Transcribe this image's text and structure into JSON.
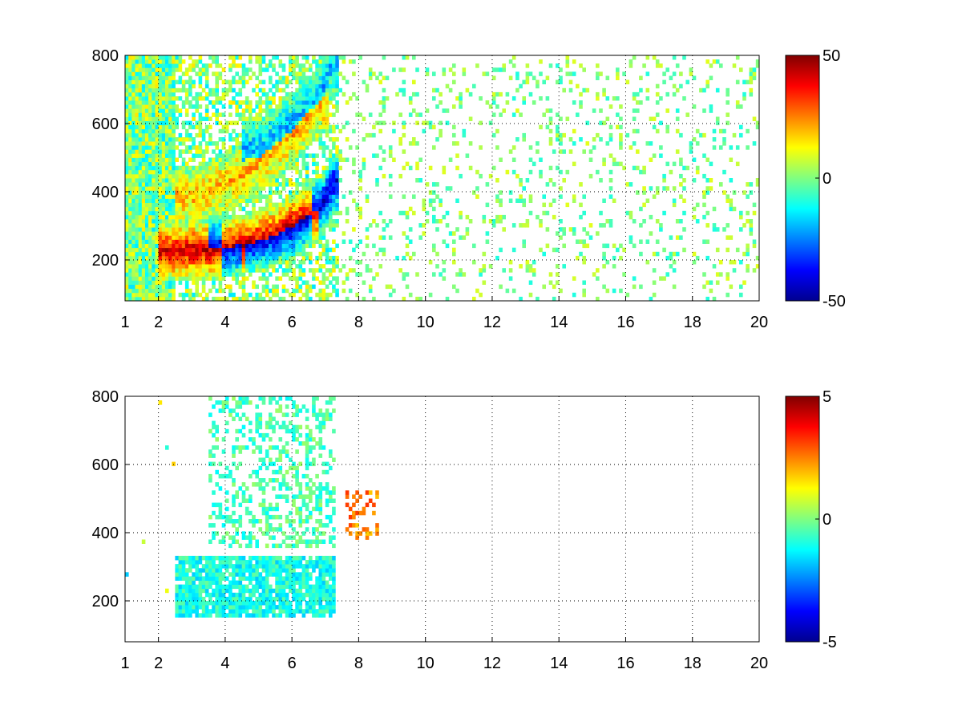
{
  "chart_data": [
    {
      "type": "heatmap",
      "title": "",
      "xlabel": "",
      "ylabel": "",
      "xlim": [
        1,
        20
      ],
      "ylim": [
        80,
        800
      ],
      "x_ticks": [
        1,
        2,
        4,
        6,
        8,
        10,
        12,
        14,
        16,
        18,
        20
      ],
      "y_ticks": [
        200,
        400,
        600,
        800
      ],
      "grid": true,
      "grid_style": "dotted",
      "colormap": "jet",
      "background": "#ffffff",
      "colorbar": {
        "clim": [
          -50,
          50
        ],
        "ticks": [
          50,
          0,
          -50
        ],
        "tick_labels": [
          "50",
          "0",
          "-50"
        ],
        "placement": "right"
      },
      "features": [
        {
          "description": "positive band",
          "x": [
            2.5,
            3.5,
            4.5,
            5.5,
            6.5
          ],
          "y": [
            220,
            225,
            240,
            270,
            330
          ],
          "value": 42
        },
        {
          "description": "negative band",
          "x": [
            4,
            5,
            6,
            6.8,
            7.2
          ],
          "y": [
            230,
            250,
            290,
            350,
            420
          ],
          "value": -42
        },
        {
          "description": "upper arc",
          "x": [
            3,
            4,
            5,
            6,
            6.8
          ],
          "y": [
            380,
            420,
            480,
            560,
            650
          ],
          "value": 20
        },
        {
          "description": "upper negative arc",
          "x": [
            5,
            6,
            6.8,
            7.1
          ],
          "y": [
            520,
            600,
            680,
            760
          ],
          "value": -20
        }
      ],
      "noise_region": {
        "x": [
          7.5,
          20
        ],
        "y": [
          80,
          800
        ],
        "values": [
          -10,
          10
        ]
      }
    },
    {
      "type": "heatmap",
      "title": "",
      "xlabel": "",
      "ylabel": "",
      "xlim": [
        1,
        20
      ],
      "ylim": [
        80,
        800
      ],
      "x_ticks": [
        1,
        2,
        4,
        6,
        8,
        10,
        12,
        14,
        16,
        18,
        20
      ],
      "y_ticks": [
        200,
        400,
        600,
        800
      ],
      "grid": true,
      "grid_style": "dotted",
      "colormap": "jet",
      "background": "#ffffff",
      "colorbar": {
        "clim": [
          -5,
          5
        ],
        "ticks": [
          5,
          0,
          -5
        ],
        "tick_labels": [
          "5",
          "0",
          "-5"
        ],
        "placement": "right"
      },
      "features": [
        {
          "description": "lower band",
          "x": [
            2.5,
            7.2
          ],
          "y": [
            150,
            330
          ],
          "value": -1
        },
        {
          "description": "upper scatter",
          "x": [
            3.5,
            7.2
          ],
          "y": [
            350,
            790
          ],
          "value": -0.5
        },
        {
          "description": "warm cluster",
          "x": [
            7.5,
            8.5
          ],
          "y": [
            380,
            520
          ],
          "value": 2.5
        }
      ]
    }
  ]
}
